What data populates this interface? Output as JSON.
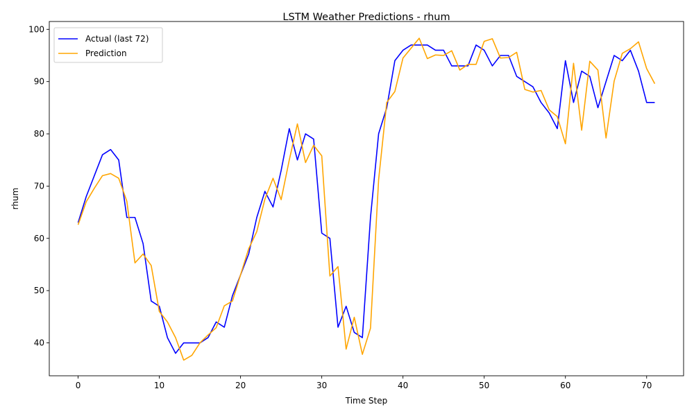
{
  "chart_data": {
    "type": "line",
    "title": "LSTM Weather Predictions - rhum",
    "xlabel": "Time Step",
    "ylabel": "rhum",
    "xlim": [
      -3.55,
      74.55
    ],
    "ylim": [
      33.7,
      101.5
    ],
    "xticks": [
      0,
      10,
      20,
      30,
      40,
      50,
      60,
      70
    ],
    "yticks": [
      40,
      50,
      60,
      70,
      80,
      90,
      100
    ],
    "grid": false,
    "legend": "top-left",
    "series": [
      {
        "name": "Actual (last 72)",
        "color": "#0000ff",
        "values": [
          63,
          68,
          72,
          76,
          77,
          75,
          64,
          64,
          59,
          48,
          47,
          41,
          38,
          40,
          40,
          40,
          41,
          44,
          43,
          49,
          53,
          57,
          64,
          69,
          66,
          73,
          81,
          75,
          80,
          79,
          61,
          60,
          43,
          47,
          42,
          41,
          64,
          80,
          85,
          94,
          96,
          97,
          97,
          97,
          96,
          96,
          93,
          93,
          93,
          97,
          96,
          93,
          95,
          95,
          91,
          90,
          89,
          86,
          84,
          81,
          94,
          86,
          92,
          91,
          85,
          90,
          95,
          94,
          96,
          92,
          86,
          86
        ]
      },
      {
        "name": "Prediction",
        "color": "#ffa500",
        "values": [
          62.6,
          67,
          69.6,
          72,
          72.4,
          71.5,
          67.1,
          55.3,
          57,
          54.8,
          46,
          44,
          41,
          36.7,
          37.6,
          40,
          41.5,
          42.9,
          47.1,
          48,
          53,
          58,
          61.3,
          67.5,
          71.5,
          67.4,
          75,
          81.9,
          74.5,
          77.8,
          75.8,
          52.8,
          54.6,
          38.8,
          44.9,
          37.8,
          42.8,
          71.2,
          86,
          88.1,
          94.5,
          96.4,
          98.3,
          94.4,
          95.1,
          95,
          95.9,
          92.2,
          93.3,
          93.3,
          97.7,
          98.2,
          94.5,
          94.6,
          95.6,
          88.5,
          88,
          88.3,
          84.6,
          83.3,
          78.1,
          93.5,
          80.7,
          93.9,
          92.2,
          79.2,
          90.1,
          95.4,
          96.3,
          97.6,
          92.5,
          89.6
        ]
      }
    ]
  }
}
